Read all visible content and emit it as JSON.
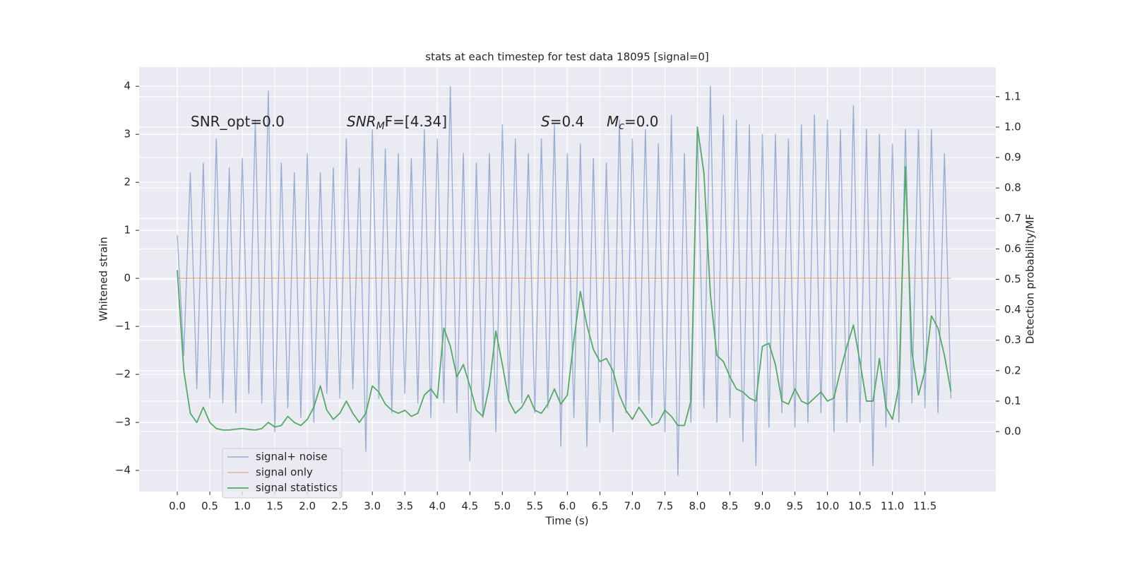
{
  "chart_data": {
    "type": "line",
    "title": "stats at each timestep for test data 18095 [signal=0]",
    "x_label": "Time (s)",
    "y_label": "Whitened strain",
    "y2_label": "Detection probability/MF",
    "annotations": [
      {
        "base": "SNR_opt=0.0",
        "math": false
      },
      {
        "base": "SNR",
        "sub": "M",
        "rest": "F=[4.34]",
        "math": true
      },
      {
        "base": "S",
        "rest": "=0.4",
        "math": true
      },
      {
        "base": "M",
        "sub": "c",
        "rest": "=0.0",
        "math": true
      }
    ],
    "x": [
      0.0,
      0.1,
      0.2,
      0.3,
      0.4,
      0.5,
      0.6,
      0.7,
      0.8,
      0.9,
      1.0,
      1.1,
      1.2,
      1.3,
      1.4,
      1.5,
      1.6,
      1.7,
      1.8,
      1.9,
      2.0,
      2.1,
      2.2,
      2.3,
      2.4,
      2.5,
      2.6,
      2.7,
      2.8,
      2.9,
      3.0,
      3.1,
      3.2,
      3.3,
      3.4,
      3.5,
      3.6,
      3.7,
      3.8,
      3.9,
      4.0,
      4.1,
      4.2,
      4.3,
      4.4,
      4.5,
      4.6,
      4.7,
      4.8,
      4.9,
      5.0,
      5.1,
      5.2,
      5.3,
      5.4,
      5.5,
      5.6,
      5.7,
      5.8,
      5.9,
      6.0,
      6.1,
      6.2,
      6.3,
      6.4,
      6.5,
      6.6,
      6.7,
      6.8,
      6.9,
      7.0,
      7.1,
      7.2,
      7.3,
      7.4,
      7.5,
      7.6,
      7.7,
      7.8,
      7.9,
      8.0,
      8.1,
      8.2,
      8.3,
      8.4,
      8.5,
      8.6,
      8.7,
      8.8,
      8.9,
      9.0,
      9.1,
      9.2,
      9.3,
      9.4,
      9.5,
      9.6,
      9.7,
      9.8,
      9.9,
      10.0,
      10.1,
      10.2,
      10.3,
      10.4,
      10.5,
      10.6,
      10.7,
      10.8,
      10.9,
      11.0,
      11.1,
      11.2,
      11.3,
      11.4,
      11.5,
      11.6,
      11.7,
      11.8,
      11.9
    ],
    "series": [
      {
        "name": "signal+ noise",
        "color": "#4c72b0",
        "axis": "y",
        "values": [
          0.9,
          -1.6,
          2.2,
          -2.3,
          2.4,
          -2.5,
          2.9,
          -2.6,
          2.3,
          -2.8,
          2.5,
          -2.4,
          3.3,
          -2.6,
          3.9,
          -3.2,
          2.4,
          -2.7,
          2.2,
          -2.9,
          2.6,
          -3.0,
          2.2,
          -2.4,
          2.3,
          -2.5,
          2.9,
          -2.3,
          2.3,
          -3.6,
          3.1,
          -2.5,
          2.7,
          -2.8,
          2.6,
          -2.4,
          2.5,
          -2.6,
          3.1,
          -2.9,
          2.9,
          -2.6,
          4.0,
          -2.8,
          2.6,
          -3.8,
          2.4,
          -2.9,
          2.6,
          -3.2,
          3.2,
          -2.5,
          2.9,
          -2.6,
          2.6,
          -2.8,
          2.9,
          -2.7,
          3.2,
          -3.5,
          2.6,
          -2.9,
          2.8,
          -3.5,
          2.5,
          -3.0,
          2.4,
          -3.2,
          3.3,
          -2.8,
          2.9,
          -2.6,
          3.1,
          -2.9,
          2.8,
          -3.2,
          3.4,
          -4.1,
          2.6,
          -3.0,
          3.1,
          -2.7,
          4.0,
          -3.0,
          3.4,
          -2.9,
          3.3,
          -3.4,
          3.2,
          -3.9,
          3.0,
          -3.1,
          3.0,
          -2.8,
          2.9,
          -3.1,
          3.2,
          -3.0,
          3.4,
          -2.8,
          3.3,
          -3.2,
          3.1,
          -3.0,
          3.6,
          -3.0,
          3.1,
          -3.9,
          3.0,
          -3.1,
          2.8,
          -3.0,
          3.1,
          -2.6,
          3.1,
          -2.7,
          3.1,
          -2.8,
          2.6,
          -2.5
        ]
      },
      {
        "name": "signal only",
        "color": "#dd8452",
        "axis": "y",
        "values": [
          0,
          0,
          0,
          0,
          0,
          0,
          0,
          0,
          0,
          0,
          0,
          0,
          0,
          0,
          0,
          0,
          0,
          0,
          0,
          0,
          0,
          0,
          0,
          0,
          0,
          0,
          0,
          0,
          0,
          0,
          0,
          0,
          0,
          0,
          0,
          0,
          0,
          0,
          0,
          0,
          0,
          0,
          0,
          0,
          0,
          0,
          0,
          0,
          0,
          0,
          0,
          0,
          0,
          0,
          0,
          0,
          0,
          0,
          0,
          0,
          0,
          0,
          0,
          0,
          0,
          0,
          0,
          0,
          0,
          0,
          0,
          0,
          0,
          0,
          0,
          0,
          0,
          0,
          0,
          0,
          0,
          0,
          0,
          0,
          0,
          0,
          0,
          0,
          0,
          0,
          0,
          0,
          0,
          0,
          0,
          0,
          0,
          0,
          0,
          0,
          0,
          0,
          0,
          0,
          0,
          0,
          0,
          0,
          0,
          0,
          0,
          0,
          0,
          0,
          0,
          0,
          0,
          0,
          0,
          0
        ]
      },
      {
        "name": "signal statistics",
        "color": "#55a868",
        "axis": "y2",
        "values": [
          0.53,
          0.2,
          0.06,
          0.03,
          0.08,
          0.03,
          0.01,
          0.005,
          0.005,
          0.008,
          0.01,
          0.007,
          0.005,
          0.01,
          0.03,
          0.015,
          0.02,
          0.05,
          0.03,
          0.02,
          0.04,
          0.08,
          0.15,
          0.07,
          0.04,
          0.06,
          0.1,
          0.06,
          0.03,
          0.06,
          0.15,
          0.13,
          0.09,
          0.07,
          0.06,
          0.07,
          0.05,
          0.06,
          0.12,
          0.14,
          0.11,
          0.34,
          0.28,
          0.18,
          0.22,
          0.15,
          0.07,
          0.05,
          0.15,
          0.33,
          0.22,
          0.1,
          0.06,
          0.08,
          0.12,
          0.07,
          0.06,
          0.09,
          0.14,
          0.09,
          0.12,
          0.3,
          0.46,
          0.35,
          0.27,
          0.23,
          0.24,
          0.2,
          0.12,
          0.07,
          0.04,
          0.08,
          0.05,
          0.02,
          0.03,
          0.07,
          0.05,
          0.02,
          0.02,
          0.1,
          1.0,
          0.85,
          0.45,
          0.25,
          0.23,
          0.18,
          0.14,
          0.13,
          0.11,
          0.1,
          0.28,
          0.29,
          0.22,
          0.1,
          0.09,
          0.14,
          0.1,
          0.09,
          0.11,
          0.13,
          0.1,
          0.11,
          0.2,
          0.28,
          0.35,
          0.23,
          0.1,
          0.1,
          0.24,
          0.08,
          0.04,
          0.15,
          0.87,
          0.26,
          0.12,
          0.2,
          0.38,
          0.34,
          0.25,
          0.13
        ]
      }
    ],
    "xlim": [
      -0.587,
      12.59
    ],
    "xticks": [
      {
        "value": 0,
        "label": "0.0"
      },
      {
        "value": 0.5,
        "label": "0.5"
      },
      {
        "value": 1,
        "label": "1.0"
      },
      {
        "value": 1.5,
        "label": "1.5"
      },
      {
        "value": 2,
        "label": "2.0"
      },
      {
        "value": 2.5,
        "label": "2.5"
      },
      {
        "value": 3,
        "label": "3.0"
      },
      {
        "value": 3.5,
        "label": "3.5"
      },
      {
        "value": 4,
        "label": "4.0"
      },
      {
        "value": 4.5,
        "label": "4.5"
      },
      {
        "value": 5,
        "label": "5.0"
      },
      {
        "value": 5.5,
        "label": "5.5"
      },
      {
        "value": 6,
        "label": "6.0"
      },
      {
        "value": 6.5,
        "label": "6.5"
      },
      {
        "value": 7,
        "label": "7.0"
      },
      {
        "value": 7.5,
        "label": "7.5"
      },
      {
        "value": 8,
        "label": "8.0"
      },
      {
        "value": 8.5,
        "label": "8.5"
      },
      {
        "value": 9,
        "label": "9.0"
      },
      {
        "value": 9.5,
        "label": "9.5"
      },
      {
        "value": 10,
        "label": "10.0"
      },
      {
        "value": 10.5,
        "label": "10.5"
      },
      {
        "value": 11,
        "label": "11.0"
      },
      {
        "value": 11.5,
        "label": "11.5"
      }
    ],
    "ylim": [
      -4.44,
      4.4
    ],
    "yticks": [
      {
        "value": -4,
        "label": "−4"
      },
      {
        "value": -3,
        "label": "−3"
      },
      {
        "value": -2,
        "label": "−2"
      },
      {
        "value": -1,
        "label": "−1"
      },
      0,
      1,
      2,
      3,
      4
    ],
    "y2lim": [
      -0.197,
      1.197
    ],
    "y2ticks": [
      {
        "value": 0,
        "label": "0.0"
      },
      {
        "value": 0.1,
        "label": "0.1"
      },
      {
        "value": 0.2,
        "label": "0.2"
      },
      {
        "value": 0.3,
        "label": "0.3"
      },
      {
        "value": 0.4,
        "label": "0.4"
      },
      {
        "value": 0.5,
        "label": "0.5"
      },
      {
        "value": 0.6,
        "label": "0.6"
      },
      {
        "value": 0.7,
        "label": "0.7"
      },
      {
        "value": 0.8,
        "label": "0.8"
      },
      {
        "value": 0.9,
        "label": "0.9"
      },
      {
        "value": 1,
        "label": "1.0"
      },
      {
        "value": 1.1,
        "label": "1.1"
      }
    ],
    "grid": true,
    "legend_position": "lower left"
  }
}
